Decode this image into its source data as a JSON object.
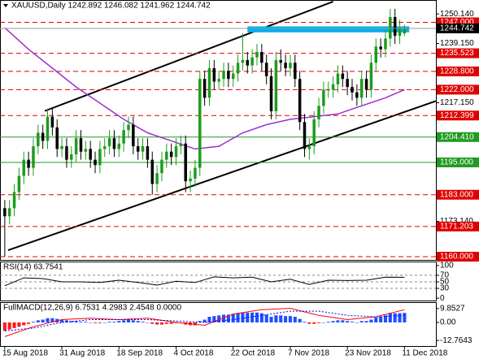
{
  "chart_data": [
    {
      "type": "candlestick",
      "title": "XAUUSD,Daily  1242.892 1246.082 1241.962 1244.742",
      "categories": [
        "15 Aug 2018",
        null,
        null,
        null,
        null,
        null,
        null,
        null,
        null,
        null,
        null,
        null,
        "31 Aug 2018",
        null,
        null,
        null,
        null,
        null,
        null,
        null,
        null,
        null,
        null,
        null,
        "18 Sep 2018",
        null,
        null,
        null,
        null,
        null,
        null,
        null,
        null,
        null,
        null,
        null,
        "4 Oct 2018",
        null,
        null,
        null,
        null,
        null,
        null,
        null,
        null,
        null,
        null,
        null,
        "22 Oct 2018",
        null,
        null,
        null,
        null,
        null,
        null,
        null,
        null,
        null,
        null,
        null,
        "7 Nov 2018",
        null,
        null,
        null,
        null,
        null,
        null,
        null,
        null,
        null,
        null,
        null,
        "23 Nov 2018",
        null,
        null,
        null,
        null,
        null,
        null,
        null,
        null,
        null,
        null,
        null,
        "11 Dec 2018"
      ],
      "open": [
        1178,
        1175,
        1178,
        1184,
        1190,
        1196,
        1193,
        1201,
        1206,
        1203,
        1212,
        1208,
        1200,
        1201,
        1196,
        1198,
        1204,
        1199,
        1200,
        1196,
        1194,
        1200,
        1201,
        1204,
        1200,
        1202,
        1207,
        1209,
        1201,
        1199,
        1201,
        1196,
        1187,
        1191,
        1196,
        1199,
        1197,
        1201,
        1202,
        1188,
        1189,
        1193,
        1226,
        1219,
        1230,
        1225,
        1226,
        1229,
        1226,
        1228,
        1232,
        1233,
        1231,
        1234,
        1236,
        1232,
        1227,
        1214,
        1233,
        1232,
        1230,
        1232,
        1226,
        1210,
        1200,
        1201,
        1211,
        1216,
        1222,
        1222,
        1224,
        1228,
        1226,
        1223,
        1221,
        1219,
        1226,
        1222,
        1232,
        1238,
        1237,
        1241,
        1249,
        1242,
        1242.892
      ],
      "high": [
        1181,
        1181,
        1187,
        1193,
        1199,
        1199,
        1204,
        1209,
        1209,
        1215,
        1215,
        1211,
        1204,
        1204,
        1201,
        1207,
        1207,
        1203,
        1203,
        1199,
        1203,
        1204,
        1207,
        1207,
        1205,
        1210,
        1212,
        1212,
        1204,
        1204,
        1204,
        1199,
        1194,
        1199,
        1202,
        1202,
        1204,
        1205,
        1205,
        1192,
        1196,
        1229,
        1229,
        1233,
        1233,
        1229,
        1232,
        1232,
        1231,
        1235,
        1243,
        1236,
        1237,
        1239,
        1239,
        1235,
        1230,
        1236,
        1237,
        1235,
        1235,
        1235,
        1229,
        1213,
        1204,
        1214,
        1219,
        1225,
        1225,
        1227,
        1231,
        1231,
        1229,
        1226,
        1224,
        1229,
        1229,
        1235,
        1241,
        1241,
        1244,
        1252,
        1252,
        1248,
        1246.082
      ],
      "low": [
        1160,
        1172,
        1175,
        1181,
        1187,
        1190,
        1190,
        1198,
        1200,
        1200,
        1205,
        1197,
        1197,
        1193,
        1193,
        1195,
        1196,
        1196,
        1193,
        1191,
        1191,
        1197,
        1198,
        1197,
        1197,
        1199,
        1204,
        1198,
        1196,
        1196,
        1193,
        1183,
        1184,
        1188,
        1193,
        1194,
        1194,
        1198,
        1184,
        1184,
        1186,
        1190,
        1216,
        1216,
        1222,
        1222,
        1223,
        1223,
        1223,
        1225,
        1229,
        1228,
        1228,
        1231,
        1229,
        1224,
        1211,
        1211,
        1229,
        1227,
        1227,
        1223,
        1207,
        1197,
        1196,
        1198,
        1208,
        1213,
        1219,
        1219,
        1221,
        1223,
        1220,
        1218,
        1216,
        1216,
        1219,
        1219,
        1229,
        1234,
        1234,
        1238,
        1239,
        1239,
        1241.962
      ],
      "close": [
        1175,
        1178,
        1184,
        1190,
        1196,
        1193,
        1201,
        1206,
        1203,
        1212,
        1208,
        1200,
        1201,
        1196,
        1198,
        1204,
        1199,
        1200,
        1196,
        1194,
        1200,
        1201,
        1204,
        1200,
        1202,
        1207,
        1209,
        1201,
        1199,
        1201,
        1196,
        1187,
        1191,
        1196,
        1199,
        1197,
        1201,
        1202,
        1188,
        1189,
        1193,
        1226,
        1219,
        1230,
        1225,
        1226,
        1229,
        1226,
        1228,
        1232,
        1233,
        1231,
        1234,
        1236,
        1232,
        1227,
        1214,
        1233,
        1232,
        1230,
        1232,
        1226,
        1210,
        1200,
        1201,
        1211,
        1216,
        1222,
        1222,
        1224,
        1228,
        1226,
        1223,
        1221,
        1219,
        1226,
        1222,
        1232,
        1238,
        1237,
        1241,
        1249,
        1242,
        1245,
        1244.742
      ],
      "up_color": "#1f9b1f",
      "down_color": "#000000",
      "xlim": [
        -1,
        90.6
      ],
      "ylim": [
        1158.8,
        1255
      ],
      "yticks": [
        {
          "value": 1250.14,
          "label": "1250.140"
        },
        {
          "value": 1239.15,
          "label": "1239.150"
        },
        {
          "value": 1217.15,
          "label": "1217.150"
        },
        {
          "value": 1173.14,
          "label": "1173.140"
        }
      ],
      "levels": [
        {
          "value": 1247,
          "label": "1247.000",
          "color": "#e00000"
        },
        {
          "value": 1235.523,
          "label": "1235.523",
          "color": "#e00000"
        },
        {
          "value": 1228.8,
          "label": "1228.800",
          "color": "#e00000"
        },
        {
          "value": 1222,
          "label": "1222.000",
          "color": "#e00000"
        },
        {
          "value": 1212.399,
          "label": "1212.399",
          "color": "#e00000"
        },
        {
          "value": 1204.41,
          "label": "1204.410",
          "color": "#1f9b1f"
        },
        {
          "value": 1195,
          "label": "1195.000",
          "color": "#1f9b1f"
        },
        {
          "value": 1183,
          "label": "1183.000",
          "color": "#e00000"
        },
        {
          "value": 1171.203,
          "label": "1171.203",
          "color": "#e00000"
        },
        {
          "value": 1160,
          "label": "1160.000",
          "color": "#e00000"
        }
      ],
      "current": {
        "value": 1244.742,
        "label": "1244.742"
      },
      "ma": {
        "color": "#9b30d0",
        "x": [
          0,
          5,
          10,
          15,
          20,
          25,
          30,
          35,
          40,
          45,
          50,
          55,
          60,
          65,
          70,
          75,
          80,
          84
        ],
        "values": [
          1245,
          1237,
          1230,
          1223,
          1217,
          1211,
          1206,
          1203,
          1200,
          1201,
          1206,
          1209,
          1211,
          1212,
          1213,
          1216,
          1219,
          1222
        ]
      },
      "trendlines": [
        {
          "x": [
            8.4,
            69
          ],
          "values": [
            1214.1,
            1254.7
          ]
        },
        {
          "x": [
            0.7,
            90.6
          ],
          "values": [
            1162.4,
            1217.8
          ]
        }
      ],
      "zone": {
        "x": [
          51,
          85
        ],
        "values": [
          1243.3,
          1245.5
        ],
        "color": "#00b0f0"
      }
    },
    {
      "type": "line",
      "title": "RSI(14) 63.7541",
      "ylim": [
        -7.1,
        109.5
      ],
      "yticks": [
        100,
        70,
        50,
        30,
        0
      ],
      "series": [
        {
          "color": "#000000",
          "x": [
            0,
            4,
            8,
            12,
            16,
            20,
            24,
            28,
            32,
            36,
            40,
            44,
            48,
            52,
            56,
            60,
            64,
            68,
            72,
            76,
            80,
            84
          ],
          "values": [
            38,
            62,
            60,
            50,
            50,
            48,
            55,
            48,
            40,
            52,
            48,
            65,
            62,
            64,
            50,
            58,
            42,
            55,
            54,
            55,
            64,
            63.7541
          ]
        }
      ]
    },
    {
      "type": "macd",
      "title": "FullMACD(12,26,9) 6.7531 4.2983 2.4548 0.0000",
      "ylim": [
        -16.7,
        13.8
      ],
      "yticks": [
        9.8527,
        {
          "value": 0,
          "label": "0.00"
        },
        -12.7643
      ],
      "up_color": "#1e50ff",
      "down_color": "#ff1a1a",
      "histogram": [
        -6,
        -5,
        -4,
        -3,
        -2,
        -1,
        0.5,
        1.5,
        2,
        3,
        3,
        2.5,
        2,
        1.5,
        1,
        1,
        0.5,
        0.5,
        0,
        -0.5,
        -0.5,
        0,
        0.5,
        0.5,
        1,
        1.5,
        2,
        1.5,
        1,
        0.5,
        0,
        -1,
        -1.5,
        -1.5,
        -1,
        -1,
        -0.5,
        -0.5,
        -1.5,
        -2,
        -2,
        1,
        2,
        4,
        4.5,
        5,
        5.5,
        5.5,
        6,
        6.5,
        7,
        7,
        7,
        7,
        6.5,
        5.5,
        4,
        5,
        5,
        4.5,
        4.5,
        4,
        2.5,
        0.5,
        -1,
        -1,
        -0.5,
        0,
        0.5,
        1,
        1.5,
        1.5,
        1,
        0.5,
        0,
        1,
        1,
        2,
        3.5,
        4,
        5,
        6.5,
        6.5,
        6.6,
        6.7531
      ],
      "series": [
        {
          "color": "#ff0000",
          "x": [
            0,
            6,
            12,
            18,
            24,
            30,
            36,
            42,
            48,
            54,
            60,
            66,
            72,
            78,
            84
          ],
          "values": [
            -10,
            -3,
            2,
            3,
            2,
            3,
            0,
            -2,
            6,
            9,
            10,
            5,
            2,
            4,
            9
          ]
        },
        {
          "color": "#0000ff",
          "dash": true,
          "x": [
            0,
            6,
            12,
            18,
            24,
            30,
            36,
            42,
            48,
            54,
            60,
            66,
            72,
            78,
            84
          ],
          "values": [
            -6,
            -4,
            0,
            2,
            2,
            2,
            1,
            0,
            2,
            5,
            8,
            8,
            5,
            4,
            5
          ]
        }
      ]
    }
  ]
}
